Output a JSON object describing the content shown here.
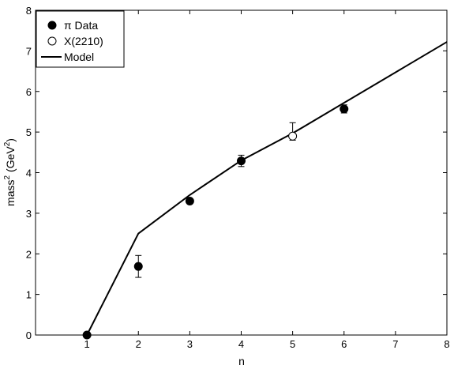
{
  "chart_data": {
    "type": "scatter",
    "title": "",
    "xlabel": "n",
    "ylabel_main": "mass",
    "ylabel_sup": "2",
    "ylabel_unit_open": "(GeV",
    "ylabel_unit_sup": "2",
    "ylabel_unit_close": ")",
    "xlim": [
      0,
      8
    ],
    "ylim": [
      0,
      8
    ],
    "xticks": [
      "1",
      "2",
      "3",
      "4",
      "5",
      "6",
      "7",
      "8"
    ],
    "yticks": [
      "0",
      "1",
      "2",
      "3",
      "4",
      "5",
      "6",
      "7",
      "8"
    ],
    "grid": false,
    "legend_position": "top-left",
    "series": [
      {
        "name": "π Data",
        "marker": "filled-circle",
        "points": [
          {
            "x": 1,
            "y": 0.0,
            "err": 0
          },
          {
            "x": 2,
            "y": 1.69,
            "err": 0.27
          },
          {
            "x": 3,
            "y": 3.3,
            "err": 0
          },
          {
            "x": 4,
            "y": 4.29,
            "err": 0.14
          },
          {
            "x": 6,
            "y": 5.57,
            "err": 0.1
          }
        ]
      },
      {
        "name": "X(2210)",
        "marker": "open-circle",
        "points": [
          {
            "x": 5,
            "y": 4.9,
            "err_minus": 0.1,
            "err_plus": 0.33
          }
        ]
      },
      {
        "name": "Model",
        "marker": "line",
        "points": [
          {
            "x": 1,
            "y": 0.0
          },
          {
            "x": 2,
            "y": 2.5
          },
          {
            "x": 3,
            "y": 3.45
          },
          {
            "x": 4,
            "y": 4.3
          },
          {
            "x": 5,
            "y": 4.97
          },
          {
            "x": 6,
            "y": 5.72
          },
          {
            "x": 7,
            "y": 6.47
          },
          {
            "x": 8,
            "y": 7.22
          }
        ]
      }
    ]
  }
}
